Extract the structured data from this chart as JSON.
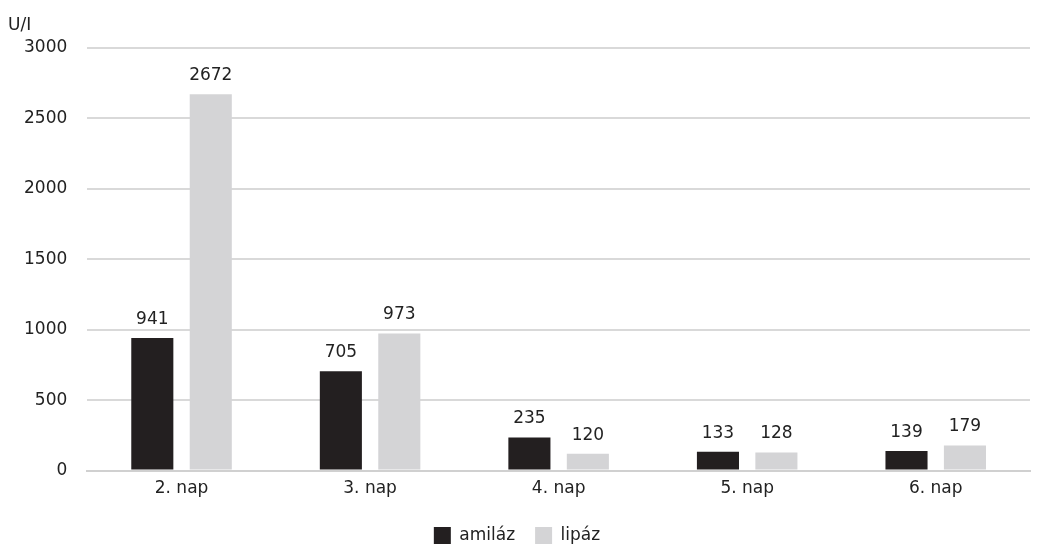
{
  "chart_data": {
    "type": "bar",
    "ylabel": "U/I",
    "categories": [
      "2. nap",
      "3. nap",
      "4. nap",
      "5. nap",
      "6. nap"
    ],
    "series": [
      {
        "name": "amiláz",
        "color": "#231f20",
        "values": [
          941,
          705,
          235,
          133,
          139
        ]
      },
      {
        "name": "lipáz",
        "color": "#d4d4d6",
        "values": [
          2672,
          973,
          120,
          128,
          179
        ]
      }
    ],
    "ylim": [
      0,
      3000
    ],
    "yticks": [
      0,
      500,
      1000,
      1500,
      2000,
      2500,
      3000
    ],
    "grid": "y",
    "legend": "bottom",
    "data_labels": true
  }
}
